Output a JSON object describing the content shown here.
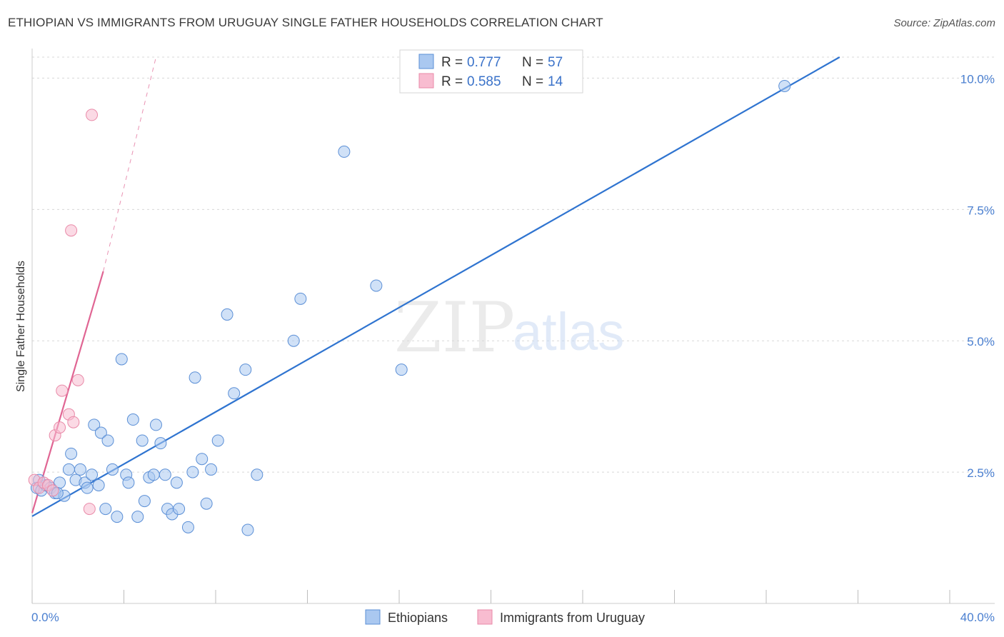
{
  "title": "ETHIOPIAN VS IMMIGRANTS FROM URUGUAY SINGLE FATHER HOUSEHOLDS CORRELATION CHART",
  "source": "Source: ZipAtlas.com",
  "watermark": {
    "zip": "ZIP",
    "atlas": "atlas"
  },
  "colors": {
    "blue_fill": "#aac8f0",
    "blue_stroke": "#5b8fd6",
    "blue_line": "#2f74d0",
    "pink_fill": "#f8bcd0",
    "pink_stroke": "#e98aa8",
    "pink_line": "#e06593",
    "grid": "#d8d8d8",
    "axis_text": "#4a7fd0"
  },
  "legend": {
    "rows": [
      {
        "series": "Ethiopians",
        "r_label": "R =",
        "r_value": "0.777",
        "n_label": "N =",
        "n_value": "57"
      },
      {
        "series": "Immigrants from Uruguay",
        "r_label": "R =",
        "r_value": "0.585",
        "n_label": "N =",
        "n_value": "14"
      }
    ]
  },
  "chart_data": {
    "type": "scatter",
    "title": "ETHIOPIAN VS IMMIGRANTS FROM URUGUAY SINGLE FATHER HOUSEHOLDS CORRELATION CHART",
    "xlabel": "",
    "ylabel": "Single Father Households",
    "xlim": [
      0,
      40
    ],
    "ylim": [
      0,
      10.4
    ],
    "x_tick_labels": [
      "0.0%",
      "40.0%"
    ],
    "y_ticks": [
      2.5,
      5.0,
      7.5,
      10.0
    ],
    "y_tick_labels": [
      "2.5%",
      "5.0%",
      "7.5%",
      "10.0%"
    ],
    "grid": true,
    "legend_position": "top-center",
    "series": [
      {
        "name": "Ethiopians",
        "r": 0.777,
        "n": 57,
        "trend": {
          "x": [
            0,
            35.2
          ],
          "y": [
            1.66,
            10.4
          ]
        },
        "points": [
          [
            0.2,
            2.2
          ],
          [
            0.4,
            2.15
          ],
          [
            0.6,
            2.25
          ],
          [
            0.8,
            2.2
          ],
          [
            1.0,
            2.1
          ],
          [
            1.2,
            2.3
          ],
          [
            1.4,
            2.05
          ],
          [
            1.6,
            2.55
          ],
          [
            1.7,
            2.85
          ],
          [
            1.9,
            2.35
          ],
          [
            2.1,
            2.55
          ],
          [
            2.3,
            2.3
          ],
          [
            2.4,
            2.2
          ],
          [
            2.6,
            2.45
          ],
          [
            2.7,
            3.4
          ],
          [
            2.9,
            2.25
          ],
          [
            3.0,
            3.25
          ],
          [
            3.2,
            1.8
          ],
          [
            3.3,
            3.1
          ],
          [
            3.5,
            2.55
          ],
          [
            3.7,
            1.65
          ],
          [
            3.9,
            4.65
          ],
          [
            4.1,
            2.45
          ],
          [
            4.2,
            2.3
          ],
          [
            4.4,
            3.5
          ],
          [
            4.6,
            1.65
          ],
          [
            4.8,
            3.1
          ],
          [
            4.9,
            1.95
          ],
          [
            5.1,
            2.4
          ],
          [
            5.3,
            2.45
          ],
          [
            5.4,
            3.4
          ],
          [
            5.6,
            3.05
          ],
          [
            5.8,
            2.45
          ],
          [
            5.9,
            1.8
          ],
          [
            6.1,
            1.7
          ],
          [
            6.3,
            2.3
          ],
          [
            6.4,
            1.8
          ],
          [
            6.8,
            1.45
          ],
          [
            7.0,
            2.5
          ],
          [
            7.1,
            4.3
          ],
          [
            7.4,
            2.75
          ],
          [
            7.6,
            1.9
          ],
          [
            7.8,
            2.55
          ],
          [
            8.1,
            3.1
          ],
          [
            8.5,
            5.5
          ],
          [
            8.8,
            4.0
          ],
          [
            9.3,
            4.45
          ],
          [
            9.4,
            1.4
          ],
          [
            9.8,
            2.45
          ],
          [
            11.4,
            5.0
          ],
          [
            11.7,
            5.8
          ],
          [
            13.6,
            8.6
          ],
          [
            15.0,
            6.05
          ],
          [
            16.1,
            4.45
          ],
          [
            32.8,
            9.85
          ],
          [
            0.3,
            2.35
          ],
          [
            1.1,
            2.1
          ]
        ]
      },
      {
        "name": "Immigrants from Uruguay",
        "r": 0.585,
        "n": 14,
        "trend": {
          "x": [
            0,
            3.1
          ],
          "y": [
            1.72,
            6.32
          ]
        },
        "trend_dashed": {
          "x": [
            3.1,
            5.4
          ],
          "y": [
            6.32,
            10.4
          ]
        },
        "points": [
          [
            0.1,
            2.35
          ],
          [
            0.3,
            2.2
          ],
          [
            0.5,
            2.3
          ],
          [
            0.7,
            2.25
          ],
          [
            0.9,
            2.15
          ],
          [
            1.0,
            3.2
          ],
          [
            1.2,
            3.35
          ],
          [
            1.3,
            4.05
          ],
          [
            1.6,
            3.6
          ],
          [
            1.8,
            3.45
          ],
          [
            2.0,
            4.25
          ],
          [
            1.7,
            7.1
          ],
          [
            2.6,
            9.3
          ],
          [
            2.5,
            1.8
          ]
        ]
      }
    ]
  }
}
